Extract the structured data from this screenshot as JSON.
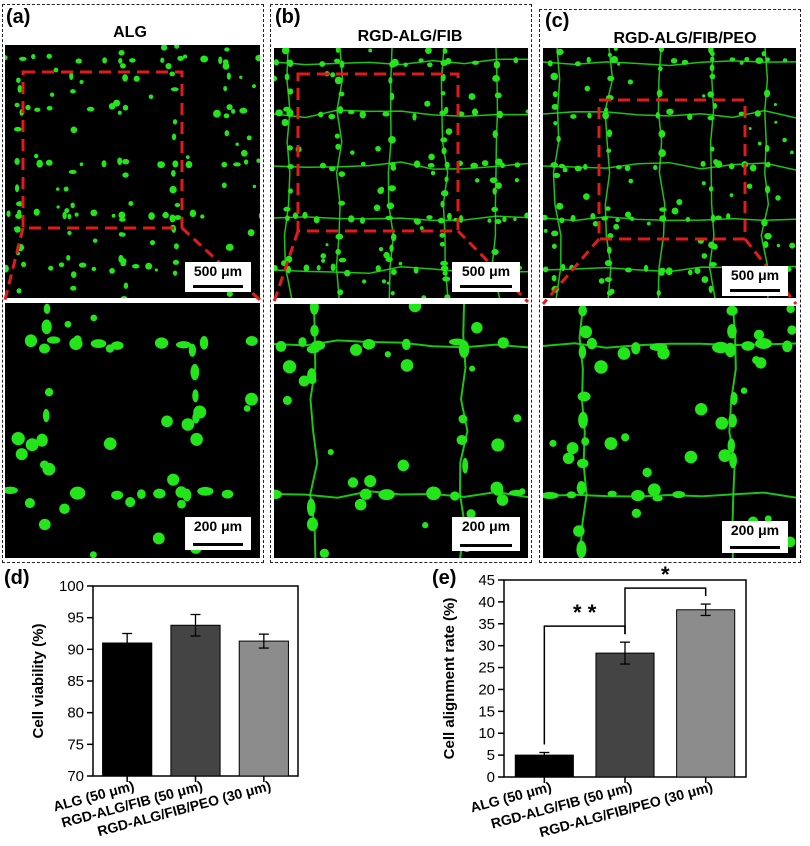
{
  "panels": [
    {
      "label": "(a)",
      "title": "ALG",
      "scale_top": "500 μm",
      "scale_bottom": "200 μm"
    },
    {
      "label": "(b)",
      "title": "RGD-ALG/FIB",
      "scale_top": "500 μm",
      "scale_bottom": "200 μm"
    },
    {
      "label": "(c)",
      "title": "RGD-ALG/FIB/PEO",
      "scale_top": "500 μm",
      "scale_bottom": "200 μm"
    }
  ],
  "colors": {
    "cells": "#22e51a",
    "zoom_box": "#e31a1a",
    "bar_d": [
      "#000000",
      "#444444",
      "#8c8c8c"
    ],
    "bar_e": [
      "#000000",
      "#444444",
      "#8c8c8c"
    ]
  },
  "chart_data": [
    {
      "label": "(d)",
      "type": "bar",
      "categories": [
        "ALG (50 μm)",
        "RGD-ALG/FIB (50 μm)",
        "RGD-ALG/FIB/PEO (30 μm)"
      ],
      "values": [
        91.0,
        93.8,
        91.3
      ],
      "errors": [
        1.5,
        1.7,
        1.1
      ],
      "ylabel": "Cell viability (%)",
      "ylim": [
        70,
        100
      ],
      "yticks": [
        70,
        75,
        80,
        85,
        90,
        95,
        100
      ]
    },
    {
      "label": "(e)",
      "type": "bar",
      "categories": [
        "ALG (50 μm)",
        "RGD-ALG/FIB (50 μm)",
        "RGD-ALG/FIB/PEO (30 μm)"
      ],
      "values": [
        5.0,
        28.3,
        38.2
      ],
      "errors": [
        0.6,
        2.5,
        1.3
      ],
      "ylabel": "Cell alignment rate (%)",
      "ylim": [
        0,
        45
      ],
      "yticks": [
        0,
        5,
        10,
        15,
        20,
        25,
        30,
        35,
        40,
        45
      ],
      "significance": [
        {
          "from": 0,
          "to": 1,
          "label": "* *"
        },
        {
          "from": 1,
          "to": 2,
          "label": "*"
        }
      ]
    }
  ]
}
